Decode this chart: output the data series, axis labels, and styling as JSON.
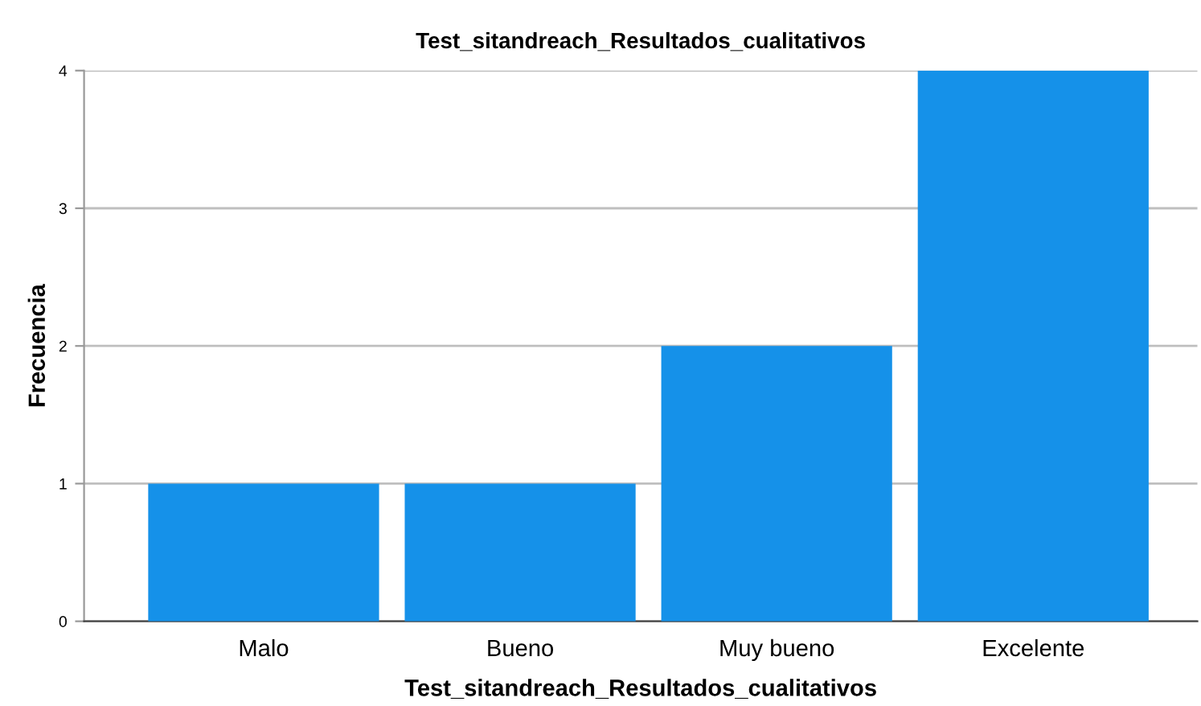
{
  "chart_data": {
    "type": "bar",
    "title": "Test_sitandreach_Resultados_cualitativos",
    "xlabel": "Test_sitandreach_Resultados_cualitativos",
    "ylabel": "Frecuencia",
    "categories": [
      "Malo",
      "Bueno",
      "Muy bueno",
      "Excelente"
    ],
    "values": [
      1,
      1,
      2,
      4
    ],
    "color": "#1591e9",
    "ylim": [
      0,
      4
    ],
    "yticks": [
      0,
      1,
      2,
      3,
      4
    ],
    "grid": "y",
    "legend": false
  }
}
